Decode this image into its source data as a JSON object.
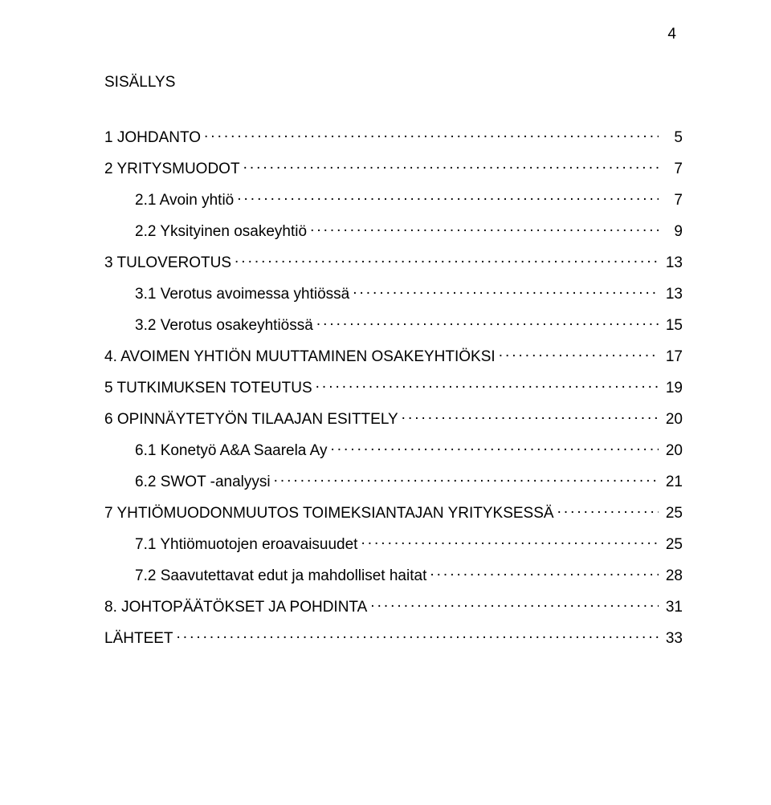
{
  "page_number": "4",
  "title": "SISÄLLYS",
  "font": {
    "family": "Arial",
    "size_pt": 14,
    "color": "#000000"
  },
  "background_color": "#ffffff",
  "leader_char": ".",
  "toc": [
    {
      "level": 0,
      "label": "1 JOHDANTO",
      "page": "5"
    },
    {
      "level": 0,
      "label": "2 YRITYSMUODOT",
      "page": "7"
    },
    {
      "level": 1,
      "label": "2.1 Avoin yhtiö",
      "page": "7"
    },
    {
      "level": 1,
      "label": "2.2 Yksityinen osakeyhtiö",
      "page": "9"
    },
    {
      "level": 0,
      "label": "3 TULOVEROTUS",
      "page": "13"
    },
    {
      "level": 1,
      "label": "3.1 Verotus avoimessa yhtiössä",
      "page": "13"
    },
    {
      "level": 1,
      "label": "3.2 Verotus osakeyhtiössä",
      "page": "15"
    },
    {
      "level": 0,
      "label": "4. AVOIMEN YHTIÖN MUUTTAMINEN OSAKEYHTIÖKSI",
      "page": "17"
    },
    {
      "level": 0,
      "label": "5 TUTKIMUKSEN TOTEUTUS",
      "page": "19"
    },
    {
      "level": 0,
      "label": "6 OPINNÄYTETYÖN TILAAJAN ESITTELY",
      "page": "20"
    },
    {
      "level": 1,
      "label": "6.1 Konetyö A&A Saarela Ay",
      "page": "20"
    },
    {
      "level": 1,
      "label": "6.2 SWOT -analyysi",
      "page": "21"
    },
    {
      "level": 0,
      "label": "7 YHTIÖMUODONMUUTOS TOIMEKSIANTAJAN YRITYKSESSÄ",
      "page": "25"
    },
    {
      "level": 1,
      "label": "7.1 Yhtiömuotojen eroavaisuudet",
      "page": "25"
    },
    {
      "level": 1,
      "label": "7.2 Saavutettavat edut ja mahdolliset haitat",
      "page": "28"
    },
    {
      "level": 0,
      "label": "8. JOHTOPÄÄTÖKSET JA POHDINTA",
      "page": "31"
    },
    {
      "level": 0,
      "label": "LÄHTEET",
      "page": "33"
    }
  ]
}
